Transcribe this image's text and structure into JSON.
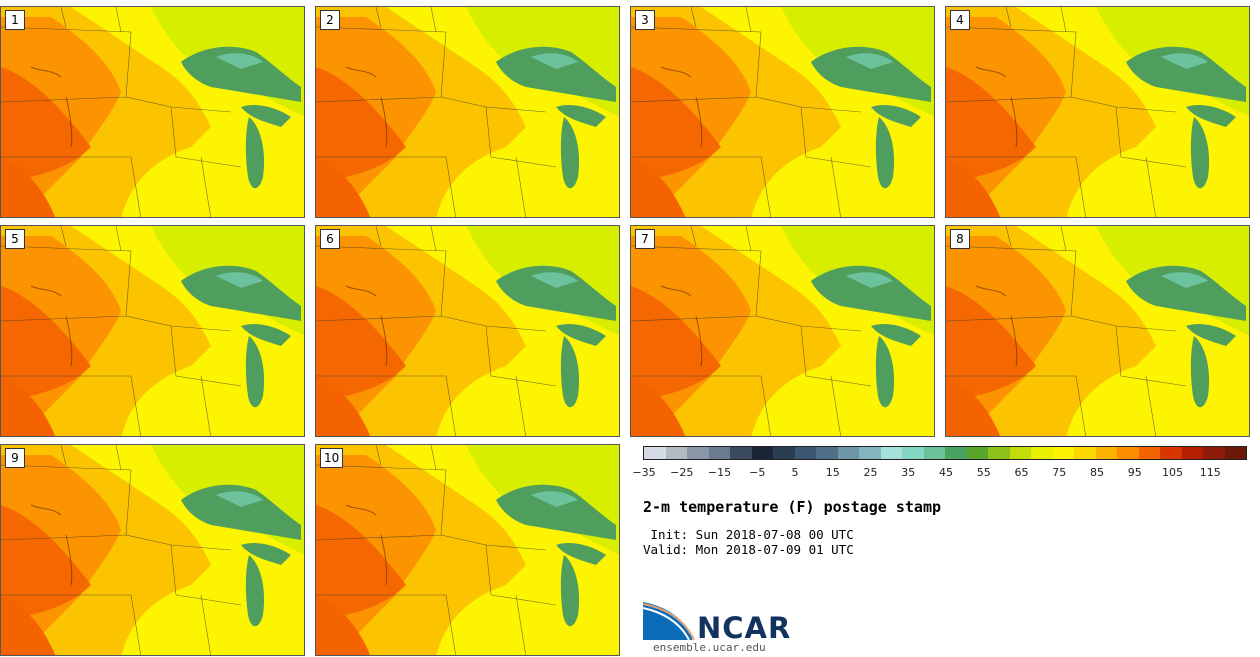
{
  "panels": [
    {
      "label": "1"
    },
    {
      "label": "2"
    },
    {
      "label": "3"
    },
    {
      "label": "4"
    },
    {
      "label": "5"
    },
    {
      "label": "6"
    },
    {
      "label": "7"
    },
    {
      "label": "8"
    },
    {
      "label": "9"
    },
    {
      "label": "10"
    }
  ],
  "colorbar": {
    "colors": [
      "#d4dbe2",
      "#b2bac2",
      "#8a97a8",
      "#6a7a8f",
      "#3c4a5f",
      "#1a2538",
      "#2b3d52",
      "#3b5670",
      "#4f7088",
      "#6c96a6",
      "#84b6bf",
      "#a6e0dc",
      "#86d6c6",
      "#6cc29c",
      "#4ba361",
      "#5aa52e",
      "#8cc01a",
      "#c4dc08",
      "#e6f000",
      "#fcf400",
      "#fcd700",
      "#fcb200",
      "#fc8c00",
      "#f46300",
      "#d73600",
      "#b52000",
      "#8f1b0a",
      "#6b1a0a"
    ],
    "tick_labels": [
      "−35",
      "−25",
      "−15",
      "−5",
      "5",
      "15",
      "25",
      "35",
      "45",
      "55",
      "65",
      "75",
      "85",
      "95",
      "105",
      "115"
    ]
  },
  "title": "2-m temperature (F) postage stamp",
  "init_text": " Init: Sun 2018-07-08 00 UTC",
  "valid_text": "Valid: Mon 2018-07-09 01 UTC",
  "logo_text": "NCAR",
  "url_text": "ensemble.ucar.edu",
  "colors": {
    "hot": "#f46300",
    "warm": "#fc9300",
    "mild": "#fcc400",
    "yellow": "#fcf400",
    "cool": "#d8ee00",
    "lake": "#4f9e5e",
    "lake2": "#6cc29c"
  }
}
